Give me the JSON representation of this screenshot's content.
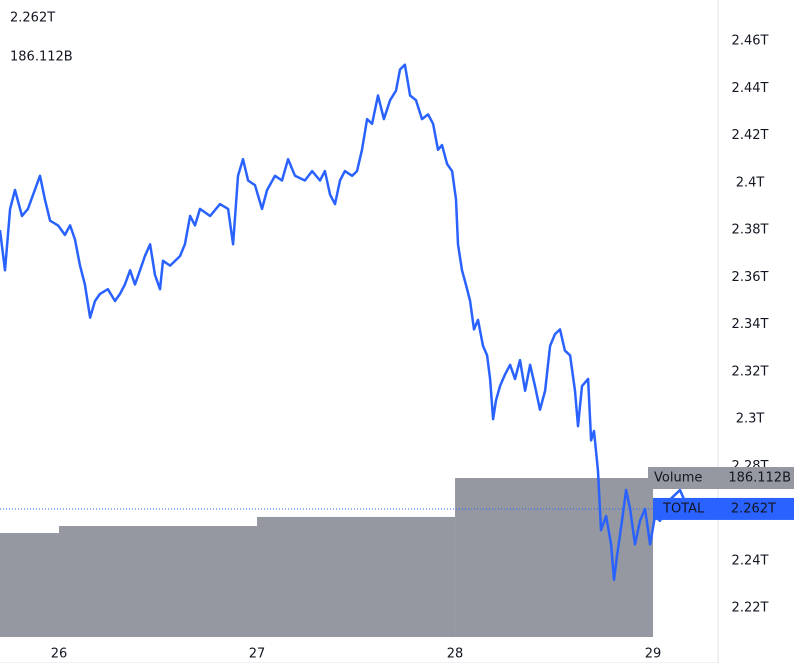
{
  "chart_data": {
    "type": "line",
    "series": [
      {
        "name": "TOTAL",
        "color": "#2962ff",
        "x": [
          25.702,
          25.727,
          25.753,
          25.778,
          25.813,
          25.843,
          25.869,
          25.904,
          25.929,
          25.955,
          25.995,
          26.03,
          26.056,
          26.081,
          26.106,
          26.131,
          26.157,
          26.182,
          26.207,
          26.247,
          26.283,
          26.308,
          26.333,
          26.359,
          26.384,
          26.409,
          26.434,
          26.46,
          26.485,
          26.51,
          26.525,
          26.561,
          26.611,
          26.636,
          26.662,
          26.687,
          26.712,
          26.763,
          26.813,
          26.854,
          26.879,
          26.904,
          26.929,
          26.955,
          26.99,
          27.025,
          27.051,
          27.091,
          27.126,
          27.157,
          27.192,
          27.242,
          27.278,
          27.318,
          27.343,
          27.369,
          27.394,
          27.419,
          27.444,
          27.48,
          27.505,
          27.53,
          27.556,
          27.581,
          27.611,
          27.641,
          27.672,
          27.702,
          27.722,
          27.747,
          27.773,
          27.803,
          27.833,
          27.864,
          27.889,
          27.914,
          27.934,
          27.96,
          27.985,
          28.005,
          28.015,
          28.035,
          28.055,
          28.076,
          28.096,
          28.116,
          28.141,
          28.162,
          28.177,
          28.192,
          28.207,
          28.227,
          28.253,
          28.278,
          28.303,
          28.328,
          28.354,
          28.379,
          28.404,
          28.429,
          28.455,
          28.48,
          28.505,
          28.53,
          28.555,
          28.581,
          28.606,
          28.621,
          28.641,
          28.672,
          28.687,
          28.702,
          28.722,
          28.737,
          28.763,
          28.788,
          28.803,
          28.818,
          28.843,
          28.864,
          28.884,
          28.909,
          28.934,
          28.96,
          28.985,
          29.01,
          29.035,
          29.061,
          29.086,
          29.111,
          29.136,
          29.177
        ],
        "values": [
          2.38,
          2.363,
          2.389,
          2.397,
          2.386,
          2.389,
          2.395,
          2.403,
          2.393,
          2.384,
          2.382,
          2.378,
          2.382,
          2.376,
          2.365,
          2.357,
          2.343,
          2.35,
          2.353,
          2.355,
          2.35,
          2.353,
          2.357,
          2.363,
          2.357,
          2.363,
          2.369,
          2.374,
          2.361,
          2.355,
          2.367,
          2.365,
          2.369,
          2.374,
          2.386,
          2.382,
          2.389,
          2.386,
          2.391,
          2.389,
          2.374,
          2.403,
          2.41,
          2.401,
          2.399,
          2.389,
          2.397,
          2.403,
          2.401,
          2.41,
          2.403,
          2.401,
          2.405,
          2.401,
          2.405,
          2.395,
          2.391,
          2.401,
          2.405,
          2.403,
          2.405,
          2.414,
          2.427,
          2.425,
          2.437,
          2.427,
          2.435,
          2.439,
          2.448,
          2.45,
          2.437,
          2.435,
          2.427,
          2.429,
          2.425,
          2.414,
          2.416,
          2.408,
          2.405,
          2.393,
          2.374,
          2.363,
          2.357,
          2.35,
          2.338,
          2.342,
          2.331,
          2.327,
          2.317,
          2.3,
          2.308,
          2.314,
          2.319,
          2.323,
          2.317,
          2.325,
          2.312,
          2.323,
          2.314,
          2.304,
          2.312,
          2.331,
          2.336,
          2.338,
          2.329,
          2.327,
          2.312,
          2.297,
          2.314,
          2.317,
          2.291,
          2.295,
          2.278,
          2.253,
          2.259,
          2.247,
          2.232,
          2.242,
          2.257,
          2.27,
          2.262,
          2.247,
          2.257,
          2.262,
          2.247,
          2.259,
          2.257,
          2.262,
          2.266,
          2.268,
          2.27,
          2.262
        ],
        "last_value_label": "2.262T"
      }
    ],
    "volume": {
      "name": "Volume",
      "color": "#9598a1",
      "x": [
        25,
        26,
        27,
        28
      ],
      "values": [
        121.7,
        129.9,
        140.5,
        186.112
      ],
      "last_value_label": "186.112B"
    },
    "xlim": [
      25.702,
      29.328
    ],
    "xticks": [
      26,
      27,
      28,
      29
    ],
    "ylim": [
      2.2078,
      2.4774
    ],
    "yticks": [
      {
        "value": 2.22,
        "label": "2.22T"
      },
      {
        "value": 2.24,
        "label": "2.24T"
      },
      {
        "value": 2.26,
        "label": "2.26T"
      },
      {
        "value": 2.28,
        "label": "2.28T"
      },
      {
        "value": 2.3,
        "label": "2.3T"
      },
      {
        "value": 2.32,
        "label": "2.32T"
      },
      {
        "value": 2.34,
        "label": "2.34T"
      },
      {
        "value": 2.36,
        "label": "2.36T"
      },
      {
        "value": 2.38,
        "label": "2.38T"
      },
      {
        "value": 2.4,
        "label": "2.4T"
      },
      {
        "value": 2.42,
        "label": "2.42T"
      },
      {
        "value": 2.44,
        "label": "2.44T"
      },
      {
        "value": 2.46,
        "label": "2.46T"
      }
    ]
  }
}
